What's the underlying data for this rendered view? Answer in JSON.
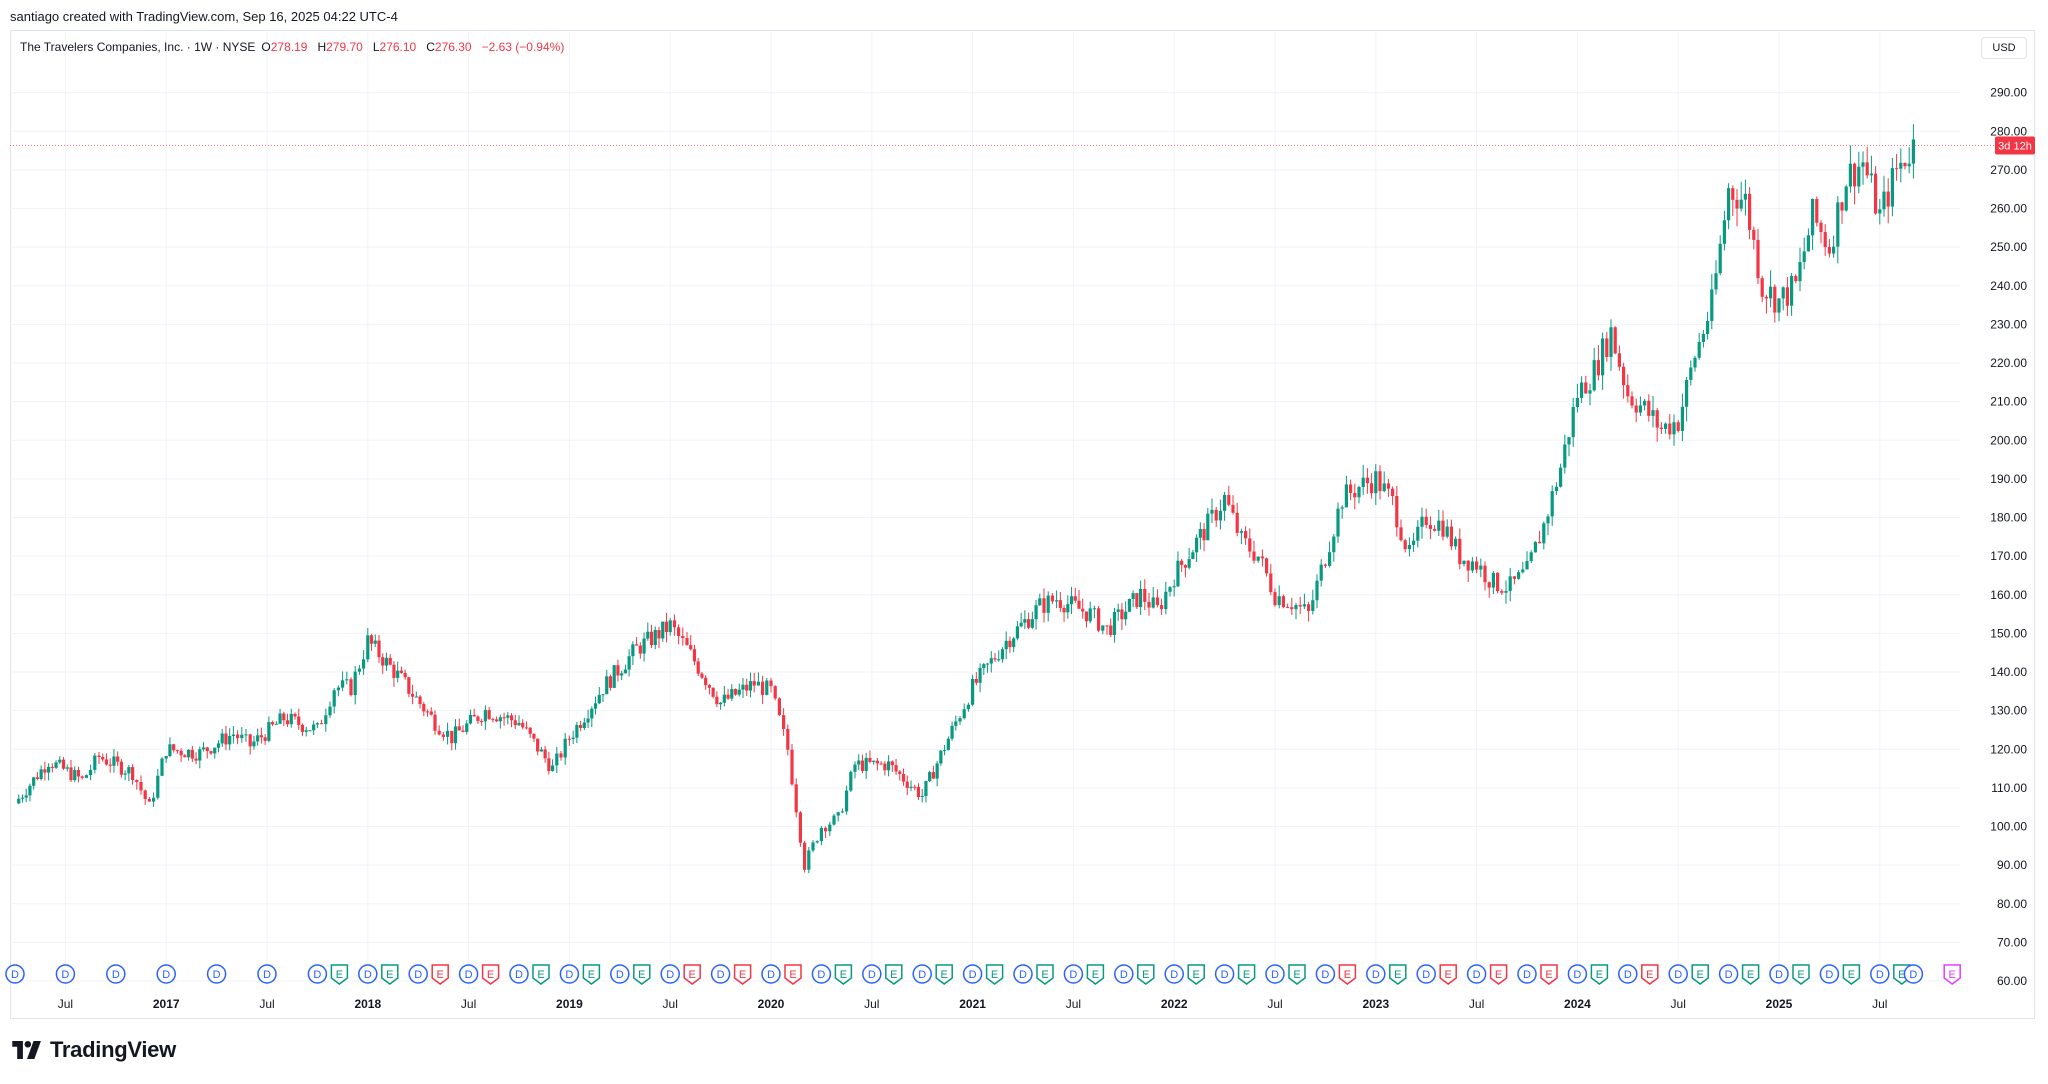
{
  "header": {
    "credit": "santiago created with TradingView.com, Sep 16, 2025 04:22 UTC-4"
  },
  "legend": {
    "name": "The Travelers Companies, Inc. · 1W · NYSE",
    "o_label": "O",
    "o": "278.19",
    "h_label": "H",
    "h": "279.70",
    "l_label": "L",
    "l": "276.10",
    "c_label": "C",
    "c": "276.30",
    "change": "−2.63 (−0.94%)"
  },
  "currency_button": "USD",
  "price_tag": "3d 12h",
  "brand": "TradingView",
  "colors": {
    "up": "#089981",
    "down": "#f23645",
    "grid": "#f0f3fa",
    "text": "#131722",
    "dividend": "#2962ff",
    "earnings_up": "#089981",
    "earnings_down": "#f23645",
    "earnings_upcoming": "#e040fb"
  },
  "chart_data": {
    "type": "candlestick",
    "title": "The Travelers Companies, Inc. · 1W · NYSE",
    "currency": "USD",
    "ylim": [
      60,
      295
    ],
    "y_ticks": [
      "290.00",
      "280.00",
      "270.00",
      "260.00",
      "250.00",
      "240.00",
      "230.00",
      "220.00",
      "210.00",
      "200.00",
      "190.00",
      "180.00",
      "170.00",
      "160.00",
      "150.00",
      "140.00",
      "130.00",
      "120.00",
      "110.00",
      "100.00",
      "90.00",
      "80.00",
      "70.00",
      "60.00"
    ],
    "x_labels": [
      {
        "date": "2016-07",
        "label": "Jul"
      },
      {
        "date": "2017-01",
        "label": "2017"
      },
      {
        "date": "2017-07",
        "label": "Jul"
      },
      {
        "date": "2018-01",
        "label": "2018"
      },
      {
        "date": "2018-07",
        "label": "Jul"
      },
      {
        "date": "2019-01",
        "label": "2019"
      },
      {
        "date": "2019-07",
        "label": "Jul"
      },
      {
        "date": "2020-01",
        "label": "2020"
      },
      {
        "date": "2020-07",
        "label": "Jul"
      },
      {
        "date": "2021-01",
        "label": "2021"
      },
      {
        "date": "2021-07",
        "label": "Jul"
      },
      {
        "date": "2022-01",
        "label": "2022"
      },
      {
        "date": "2022-07",
        "label": "Jul"
      },
      {
        "date": "2023-01",
        "label": "2023"
      },
      {
        "date": "2023-07",
        "label": "Jul"
      },
      {
        "date": "2024-01",
        "label": "2024"
      },
      {
        "date": "2024-07",
        "label": "Jul"
      },
      {
        "date": "2025-01",
        "label": "2025"
      },
      {
        "date": "2025-07",
        "label": "Jul"
      }
    ],
    "x_range": [
      "2016-04",
      "2025-12"
    ],
    "last_price": 276.3,
    "series_points": [
      {
        "date": "2016-04",
        "close": 106
      },
      {
        "date": "2016-06",
        "close": 117
      },
      {
        "date": "2016-08",
        "close": 112
      },
      {
        "date": "2016-09",
        "close": 118
      },
      {
        "date": "2016-11",
        "close": 114
      },
      {
        "date": "2016-12",
        "close": 105
      },
      {
        "date": "2017-01",
        "close": 120
      },
      {
        "date": "2017-03",
        "close": 119
      },
      {
        "date": "2017-05",
        "close": 124
      },
      {
        "date": "2017-06",
        "close": 121
      },
      {
        "date": "2017-08",
        "close": 128
      },
      {
        "date": "2017-10",
        "close": 125
      },
      {
        "date": "2017-11",
        "close": 136
      },
      {
        "date": "2017-12",
        "close": 136
      },
      {
        "date": "2018-01",
        "close": 148
      },
      {
        "date": "2018-03",
        "close": 138
      },
      {
        "date": "2018-05",
        "close": 127
      },
      {
        "date": "2018-06",
        "close": 123
      },
      {
        "date": "2018-08",
        "close": 130
      },
      {
        "date": "2018-10",
        "close": 127
      },
      {
        "date": "2018-12",
        "close": 115
      },
      {
        "date": "2019-01",
        "close": 123
      },
      {
        "date": "2019-03",
        "close": 136
      },
      {
        "date": "2019-05",
        "close": 146
      },
      {
        "date": "2019-07",
        "close": 152
      },
      {
        "date": "2019-08",
        "close": 146
      },
      {
        "date": "2019-10",
        "close": 132
      },
      {
        "date": "2019-12",
        "close": 137
      },
      {
        "date": "2020-01",
        "close": 135
      },
      {
        "date": "2020-02",
        "close": 120
      },
      {
        "date": "2020-03",
        "close": 90
      },
      {
        "date": "2020-04",
        "close": 100
      },
      {
        "date": "2020-05",
        "close": 102
      },
      {
        "date": "2020-06",
        "close": 116
      },
      {
        "date": "2020-08",
        "close": 116
      },
      {
        "date": "2020-10",
        "close": 108
      },
      {
        "date": "2020-12",
        "close": 127
      },
      {
        "date": "2021-01",
        "close": 136
      },
      {
        "date": "2021-03",
        "close": 148
      },
      {
        "date": "2021-05",
        "close": 157
      },
      {
        "date": "2021-06",
        "close": 159
      },
      {
        "date": "2021-08",
        "close": 155
      },
      {
        "date": "2021-09",
        "close": 151
      },
      {
        "date": "2021-11",
        "close": 160
      },
      {
        "date": "2021-12",
        "close": 156
      },
      {
        "date": "2022-01",
        "close": 165
      },
      {
        "date": "2022-03",
        "close": 178
      },
      {
        "date": "2022-04",
        "close": 185
      },
      {
        "date": "2022-05",
        "close": 174
      },
      {
        "date": "2022-06",
        "close": 170
      },
      {
        "date": "2022-07",
        "close": 160
      },
      {
        "date": "2022-08",
        "close": 158
      },
      {
        "date": "2022-09",
        "close": 155
      },
      {
        "date": "2022-10",
        "close": 170
      },
      {
        "date": "2022-11",
        "close": 185
      },
      {
        "date": "2022-12",
        "close": 188
      },
      {
        "date": "2023-01",
        "close": 190
      },
      {
        "date": "2023-02",
        "close": 184
      },
      {
        "date": "2023-03",
        "close": 170
      },
      {
        "date": "2023-04",
        "close": 180
      },
      {
        "date": "2023-05",
        "close": 178
      },
      {
        "date": "2023-06",
        "close": 170
      },
      {
        "date": "2023-07",
        "close": 168
      },
      {
        "date": "2023-08",
        "close": 163
      },
      {
        "date": "2023-09",
        "close": 162
      },
      {
        "date": "2023-10",
        "close": 166
      },
      {
        "date": "2023-11",
        "close": 178
      },
      {
        "date": "2023-12",
        "close": 193
      },
      {
        "date": "2024-01",
        "close": 212
      },
      {
        "date": "2024-02",
        "close": 218
      },
      {
        "date": "2024-03",
        "close": 228
      },
      {
        "date": "2024-04",
        "close": 212
      },
      {
        "date": "2024-05",
        "close": 208
      },
      {
        "date": "2024-06",
        "close": 203
      },
      {
        "date": "2024-07",
        "close": 205
      },
      {
        "date": "2024-08",
        "close": 222
      },
      {
        "date": "2024-09",
        "close": 235
      },
      {
        "date": "2024-10",
        "close": 265
      },
      {
        "date": "2024-11",
        "close": 262
      },
      {
        "date": "2024-12",
        "close": 240
      },
      {
        "date": "2025-01",
        "close": 236
      },
      {
        "date": "2025-02",
        "close": 240
      },
      {
        "date": "2025-03",
        "close": 258
      },
      {
        "date": "2025-04",
        "close": 250
      },
      {
        "date": "2025-05",
        "close": 268
      },
      {
        "date": "2025-06",
        "close": 272
      },
      {
        "date": "2025-07",
        "close": 258
      },
      {
        "date": "2025-08",
        "close": 270
      },
      {
        "date": "2025-09",
        "close": 276.3
      }
    ],
    "events_row": [
      {
        "type": "D",
        "date": "2016-04"
      },
      {
        "type": "D",
        "date": "2016-07"
      },
      {
        "type": "D",
        "date": "2016-10"
      },
      {
        "type": "D",
        "date": "2017-01"
      },
      {
        "type": "D",
        "date": "2017-04"
      },
      {
        "type": "D",
        "date": "2017-07"
      },
      {
        "type": "D",
        "date": "2017-10"
      },
      {
        "type": "E",
        "date": "2017-10"
      },
      {
        "type": "D",
        "date": "2018-01"
      },
      {
        "type": "E",
        "date": "2018-01"
      },
      {
        "type": "D",
        "date": "2018-04"
      },
      {
        "type": "E",
        "date": "2018-04"
      },
      {
        "type": "D",
        "date": "2018-07"
      },
      {
        "type": "E",
        "date": "2018-07"
      },
      {
        "type": "D",
        "date": "2018-10"
      },
      {
        "type": "E",
        "date": "2018-10"
      },
      {
        "type": "D",
        "date": "2019-01"
      },
      {
        "type": "E",
        "date": "2019-01"
      },
      {
        "type": "D",
        "date": "2019-04"
      },
      {
        "type": "E",
        "date": "2019-04"
      },
      {
        "type": "D",
        "date": "2019-07"
      },
      {
        "type": "E",
        "date": "2019-07"
      },
      {
        "type": "D",
        "date": "2019-10"
      },
      {
        "type": "E",
        "date": "2019-10"
      },
      {
        "type": "D",
        "date": "2020-01"
      },
      {
        "type": "E",
        "date": "2020-01"
      },
      {
        "type": "D",
        "date": "2020-04"
      },
      {
        "type": "E",
        "date": "2020-04"
      },
      {
        "type": "D",
        "date": "2020-07"
      },
      {
        "type": "E",
        "date": "2020-07"
      },
      {
        "type": "D",
        "date": "2020-10"
      },
      {
        "type": "E",
        "date": "2020-10"
      },
      {
        "type": "D",
        "date": "2021-01"
      },
      {
        "type": "E",
        "date": "2021-01"
      },
      {
        "type": "D",
        "date": "2021-04"
      },
      {
        "type": "E",
        "date": "2021-04"
      },
      {
        "type": "D",
        "date": "2021-07"
      },
      {
        "type": "E",
        "date": "2021-07"
      },
      {
        "type": "D",
        "date": "2021-10"
      },
      {
        "type": "E",
        "date": "2021-10"
      },
      {
        "type": "D",
        "date": "2022-01"
      },
      {
        "type": "E",
        "date": "2022-01"
      },
      {
        "type": "D",
        "date": "2022-04"
      },
      {
        "type": "E",
        "date": "2022-04"
      },
      {
        "type": "D",
        "date": "2022-07"
      },
      {
        "type": "E",
        "date": "2022-07"
      },
      {
        "type": "D",
        "date": "2022-10"
      },
      {
        "type": "E",
        "date": "2022-10"
      },
      {
        "type": "D",
        "date": "2023-01"
      },
      {
        "type": "E",
        "date": "2023-01"
      },
      {
        "type": "D",
        "date": "2023-04"
      },
      {
        "type": "E",
        "date": "2023-04"
      },
      {
        "type": "D",
        "date": "2023-07"
      },
      {
        "type": "E",
        "date": "2023-07"
      },
      {
        "type": "D",
        "date": "2023-10"
      },
      {
        "type": "E",
        "date": "2023-10"
      },
      {
        "type": "D",
        "date": "2024-01"
      },
      {
        "type": "E",
        "date": "2024-01"
      },
      {
        "type": "D",
        "date": "2024-04"
      },
      {
        "type": "E",
        "date": "2024-04"
      },
      {
        "type": "D",
        "date": "2024-07"
      },
      {
        "type": "E",
        "date": "2024-07"
      },
      {
        "type": "D",
        "date": "2024-10"
      },
      {
        "type": "E",
        "date": "2024-10"
      },
      {
        "type": "D",
        "date": "2025-01"
      },
      {
        "type": "E",
        "date": "2025-01"
      },
      {
        "type": "D",
        "date": "2025-04"
      },
      {
        "type": "E",
        "date": "2025-04"
      },
      {
        "type": "D",
        "date": "2025-07"
      },
      {
        "type": "E",
        "date": "2025-07"
      },
      {
        "type": "D",
        "date": "2025-09"
      },
      {
        "type": "E",
        "date": "2025-10"
      }
    ],
    "events_down": [
      "2018-04",
      "2018-07",
      "2019-07",
      "2019-10",
      "2020-01",
      "2022-10",
      "2023-04",
      "2023-07",
      "2023-10",
      "2024-04"
    ],
    "events_upcoming": [
      "2025-10"
    ]
  }
}
